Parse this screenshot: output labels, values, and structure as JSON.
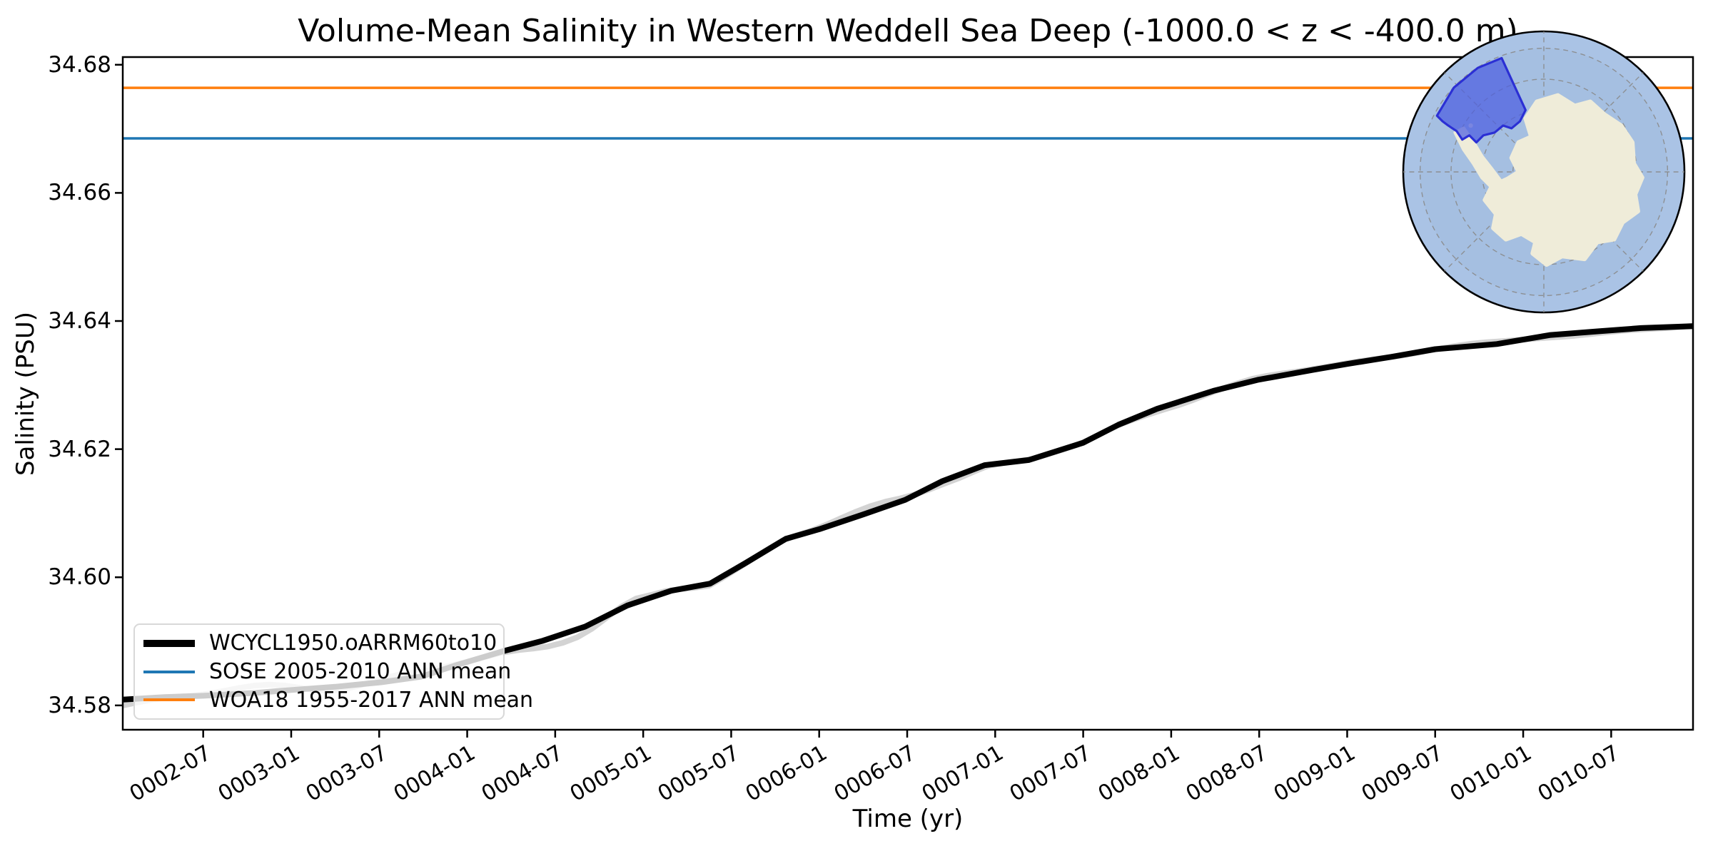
{
  "title": "Volume-Mean Salinity in Western Weddell Sea Deep (-1000.0 < z < -400.0 m)",
  "legend": {
    "entries": [
      {
        "label": "WCYCL1950.oARRM60to10",
        "color": "#000000",
        "thickness": 10
      },
      {
        "label": "SOSE 2005-2010 ANN mean",
        "color": "#1f77b4",
        "thickness": 4
      },
      {
        "label": "WOA18 1955-2017 ANN mean",
        "color": "#ff7f0e",
        "thickness": 4
      }
    ]
  },
  "chart_data": {
    "type": "line",
    "title": "Volume-Mean Salinity in Western Weddell Sea Deep (-1000.0 < z < -400.0 m)",
    "xlabel": "Time (yr)",
    "ylabel": "Salinity (PSU)",
    "xlim": [
      2.043,
      10.965
    ],
    "ylim": [
      34.5762,
      34.6812
    ],
    "grid": false,
    "legend_position": "lower left",
    "yticks": {
      "values": [
        34.58,
        34.6,
        34.62,
        34.64,
        34.66,
        34.68
      ],
      "labels": [
        "34.58",
        "34.60",
        "34.62",
        "34.64",
        "34.66",
        "34.68"
      ]
    },
    "xticks": {
      "values": [
        2.5,
        3.0,
        3.5,
        4.0,
        4.5,
        5.0,
        5.5,
        6.0,
        6.5,
        7.0,
        7.5,
        8.0,
        8.5,
        9.0,
        9.5,
        10.0,
        10.5
      ],
      "labels": [
        "0002-07",
        "0003-01",
        "0003-07",
        "0004-01",
        "0004-07",
        "0005-01",
        "0005-07",
        "0006-01",
        "0006-07",
        "0007-01",
        "0007-07",
        "0008-01",
        "0008-07",
        "0009-01",
        "0009-07",
        "0010-01",
        "0010-07"
      ]
    },
    "series": [
      {
        "name": "WCYCL1950.oARRM60to10",
        "kind": "line",
        "color": "#000000",
        "line_width": 8,
        "points": [
          [
            2.043,
            34.5809
          ],
          [
            2.28,
            34.5813
          ],
          [
            2.5,
            34.5815
          ],
          [
            2.77,
            34.5819
          ],
          [
            3.0,
            34.5824
          ],
          [
            3.25,
            34.5829
          ],
          [
            3.51,
            34.5836
          ],
          [
            3.74,
            34.5845
          ],
          [
            3.94,
            34.5863
          ],
          [
            4.21,
            34.5885
          ],
          [
            4.43,
            34.5901
          ],
          [
            4.67,
            34.5923
          ],
          [
            4.91,
            34.5956
          ],
          [
            5.16,
            34.5979
          ],
          [
            5.38,
            34.599
          ],
          [
            5.58,
            34.6022
          ],
          [
            5.81,
            34.606
          ],
          [
            6.0,
            34.6075
          ],
          [
            6.25,
            34.6098
          ],
          [
            6.49,
            34.6121
          ],
          [
            6.7,
            34.615
          ],
          [
            6.94,
            34.6175
          ],
          [
            7.19,
            34.6183
          ],
          [
            7.5,
            34.621
          ],
          [
            7.7,
            34.6238
          ],
          [
            7.92,
            34.6263
          ],
          [
            8.24,
            34.6291
          ],
          [
            8.49,
            34.6308
          ],
          [
            8.81,
            34.6324
          ],
          [
            9.0,
            34.6333
          ],
          [
            9.25,
            34.6344
          ],
          [
            9.5,
            34.6356
          ],
          [
            9.85,
            34.6364
          ],
          [
            10.15,
            34.6378
          ],
          [
            10.43,
            34.6384
          ],
          [
            10.67,
            34.6389
          ],
          [
            10.965,
            34.6392
          ]
        ]
      },
      {
        "name": "SOSE 2005-2010 ANN mean",
        "kind": "hline",
        "color": "#1f77b4",
        "line_width": 3.5,
        "value": 34.6685
      },
      {
        "name": "WOA18 1955-2017 ANN mean",
        "kind": "hline",
        "color": "#ff7f0e",
        "line_width": 3.5,
        "value": 34.6764
      }
    ],
    "raw_monthly_series": {
      "name": "unsmoothed monthly values",
      "color": "#d3d3d3",
      "line_width": 8
    }
  },
  "inset_map": {
    "ocean_color": "#aac3e5",
    "ocean_inner_color": "#a5bfe1",
    "land_color": "#efecd9",
    "region_fill": "#4c5ee0",
    "region_edge": "#2b2fd4",
    "graticule_color": "#8a8a8a",
    "border_color": "#000000"
  }
}
